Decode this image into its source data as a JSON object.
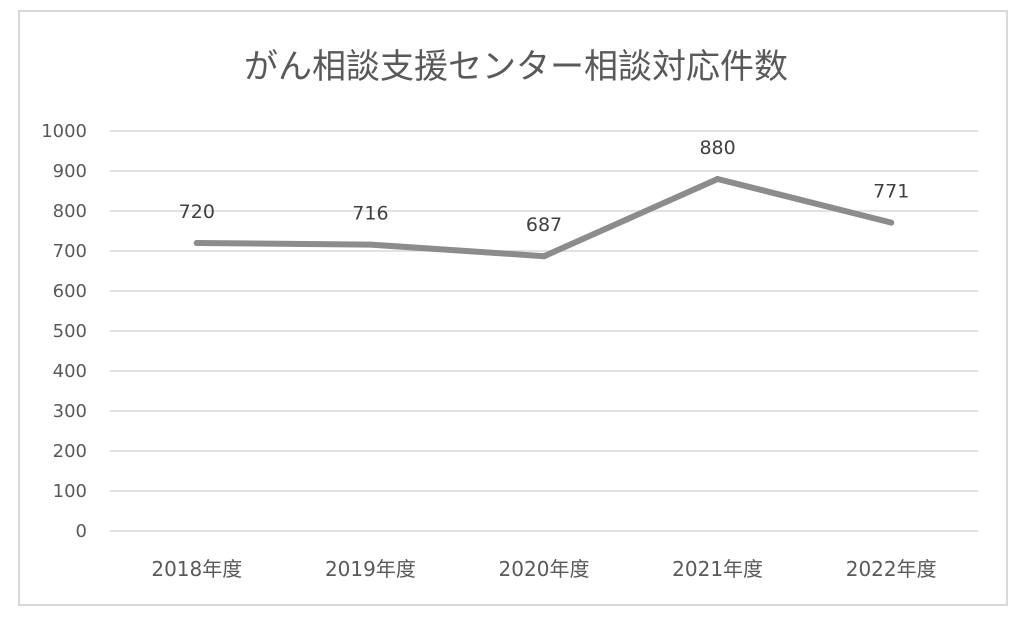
{
  "chart_data": {
    "type": "line",
    "title": "がん相談支援センター相談対応件数",
    "xlabel": "",
    "ylabel": "",
    "categories": [
      "2018年度",
      "2019年度",
      "2020年度",
      "2021年度",
      "2022年度"
    ],
    "series": [
      {
        "values": [
          720,
          716,
          687,
          880,
          771
        ],
        "color": "#8c8c8c",
        "data_labels": [
          "720",
          "716",
          "687",
          "880",
          "771"
        ]
      }
    ],
    "ylim": [
      0,
      1000
    ],
    "yticks": [
      0,
      100,
      200,
      300,
      400,
      500,
      600,
      700,
      800,
      900,
      1000
    ],
    "grid": true,
    "legend": "none"
  }
}
